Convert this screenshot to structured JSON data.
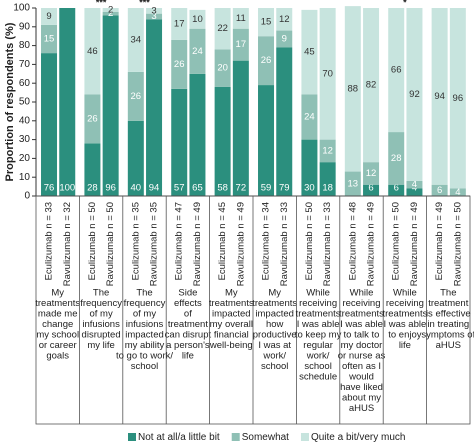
{
  "chart_data": {
    "type": "stacked_bar",
    "y_label": "Proportion of respondents (%)",
    "ylim": [
      0,
      100
    ],
    "yticks": [
      0,
      10,
      20,
      30,
      40,
      50,
      60,
      70,
      80,
      90,
      100
    ],
    "categories": [
      "Eculizumab n = 33",
      "Ravulizumab n = 32",
      "Eculizumab n = 50",
      "Ravulizumab n = 50",
      "Eculizumab n = 35",
      "Ravulizumab n = 35",
      "Eculizumab n = 47",
      "Ravulizumab n = 49",
      "Eculizumab n = 45",
      "Ravulizumab n = 49",
      "Eculizumab n = 34",
      "Ravulizumab n = 33",
      "Eculizumab n = 50",
      "Ravulizumab n = 33",
      "Eculizumab n = 48",
      "Ravulizumab n = 49",
      "Eculizumab n = 50",
      "Ravulizumab n = 49",
      "Eculizumab n = 49",
      "Ravulizumab n = 50"
    ],
    "groups": [
      [
        "My",
        "treatments",
        "made me",
        "change",
        "my school",
        "or career",
        "goals"
      ],
      [
        "The",
        "frequency",
        "of my",
        "infusions",
        "disrupted",
        "my life"
      ],
      [
        "The",
        "frequency",
        "of my",
        "infusions",
        "impacted",
        "my ability",
        "to go to work/",
        "school"
      ],
      [
        "Side",
        "effects",
        "of",
        "treatment",
        "can disrupt",
        "a person's",
        "life"
      ],
      [
        "My",
        "treatments",
        "impacted",
        "my overall",
        "financial",
        "well-being"
      ],
      [
        "My",
        "treatments",
        "impacted",
        "how",
        "productive",
        "I was at",
        "work/",
        "school"
      ],
      [
        "While",
        "receiving",
        "treatments",
        "I was able",
        "to keep my",
        "regular",
        "work/",
        "school",
        "schedule"
      ],
      [
        "While",
        "receiving",
        "treatments",
        "I was able",
        "to talk to",
        "my doctor",
        "or nurse as",
        "often as I",
        "would",
        "have liked",
        "about my",
        "aHUS"
      ],
      [
        "While",
        "receiving",
        "treatments",
        "I was able",
        "to enjoy",
        "life"
      ],
      [
        "The",
        "treatment",
        "is effective",
        "in treating",
        "symptoms of",
        "aHUS"
      ]
    ],
    "group_annotations": [
      null,
      "***",
      "***",
      null,
      null,
      null,
      null,
      null,
      "*",
      null
    ],
    "series": [
      {
        "name": "Not at all/a little bit",
        "color": "#2b8f7e",
        "label_color": "#ffffff",
        "values": [
          76,
          100,
          28,
          96,
          40,
          94,
          57,
          65,
          58,
          72,
          59,
          79,
          30,
          18,
          0,
          6,
          6,
          4,
          0,
          0
        ]
      },
      {
        "name": "Somewhat",
        "color": "#8fc0b5",
        "label_color": "#ffffff",
        "values": [
          15,
          0,
          26,
          2,
          26,
          3,
          26,
          24,
          20,
          17,
          26,
          9,
          24,
          12,
          13,
          12,
          28,
          4,
          6,
          4
        ]
      },
      {
        "name": "Quite a bit/very much",
        "color": "#c7e4de",
        "label_color": "#333333",
        "values": [
          9,
          0,
          46,
          2,
          34,
          3,
          17,
          10,
          22,
          11,
          15,
          12,
          45,
          70,
          88,
          82,
          66,
          92,
          94,
          96
        ]
      }
    ]
  }
}
